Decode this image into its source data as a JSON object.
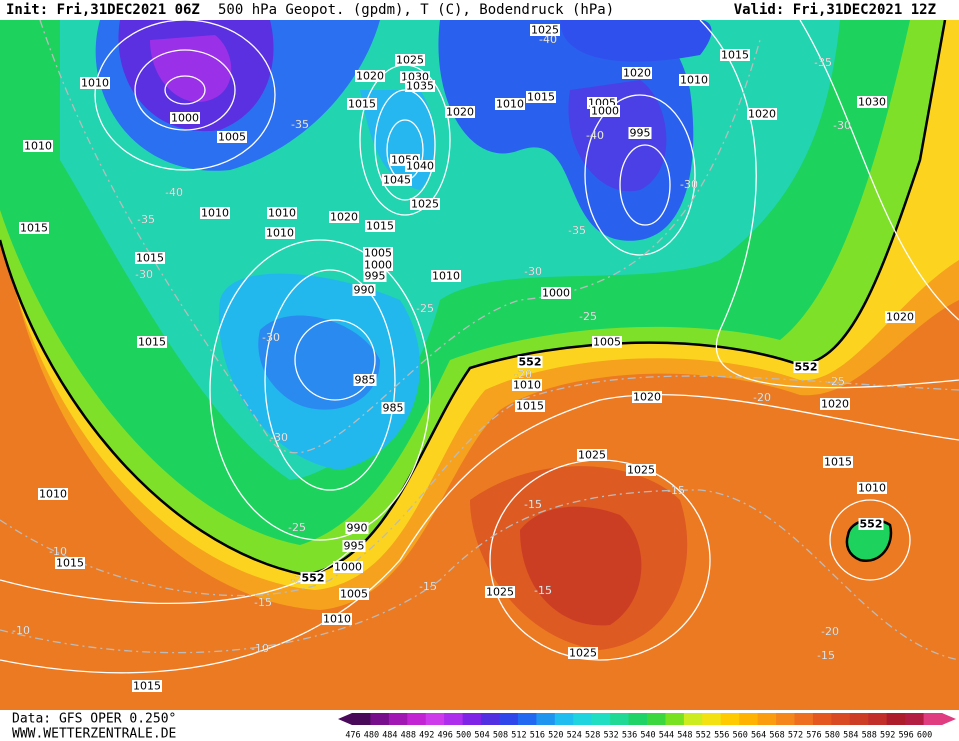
{
  "header": {
    "init": "Init: Fri,31DEC2021 06Z",
    "title": "500 hPa Geopot. (gpdm), T (C), Bodendruck (hPa)",
    "valid": "Valid: Fri,31DEC2021 12Z"
  },
  "footer": {
    "data": "Data: GFS OPER 0.250°",
    "site": "WWW.WETTERZENTRALE.DE"
  },
  "colorbar": {
    "levels": [
      476,
      480,
      484,
      488,
      492,
      496,
      500,
      504,
      508,
      512,
      516,
      520,
      524,
      528,
      532,
      536,
      540,
      544,
      548,
      552,
      556,
      560,
      564,
      568,
      572,
      576,
      580,
      584,
      588,
      592,
      596,
      600
    ]
  },
  "pressure_labels": [
    "1010",
    "1000",
    "1005",
    "1010",
    "1010",
    "1015",
    "1015",
    "1015",
    "1010",
    "1010",
    "1020",
    "1015",
    "1025",
    "1020",
    "1030",
    "1035",
    "1015",
    "1020",
    "1050",
    "1040",
    "1045",
    "1025",
    "1025",
    "1015",
    "1020",
    "1010",
    "1010",
    "1015",
    "1005",
    "1000",
    "995",
    "1020",
    "1030",
    "1005",
    "1000",
    "995",
    "990",
    "1010",
    "1000",
    "1005",
    "985",
    "985",
    "1010",
    "1015",
    "1020",
    "1025",
    "1025",
    "1020",
    "1020",
    "1015",
    "1010",
    "1010",
    "1015",
    "990",
    "995",
    "1000",
    "1005",
    "1010",
    "1025",
    "1025",
    "1015"
  ],
  "height_labels": [
    "552",
    "552",
    "552",
    "552"
  ],
  "temperature_labels": [
    "-35",
    "-40",
    "-35",
    "-30",
    "-30",
    "-30",
    "-25",
    "-25",
    "-20",
    "-15",
    "-10",
    "-10",
    "-10",
    "-30",
    "-35",
    "-40",
    "-30",
    "-25",
    "-35",
    "-30",
    "-25",
    "-20",
    "-15",
    "-15",
    "-15",
    "-15",
    "-20",
    "-15",
    "-40",
    "-20"
  ]
}
